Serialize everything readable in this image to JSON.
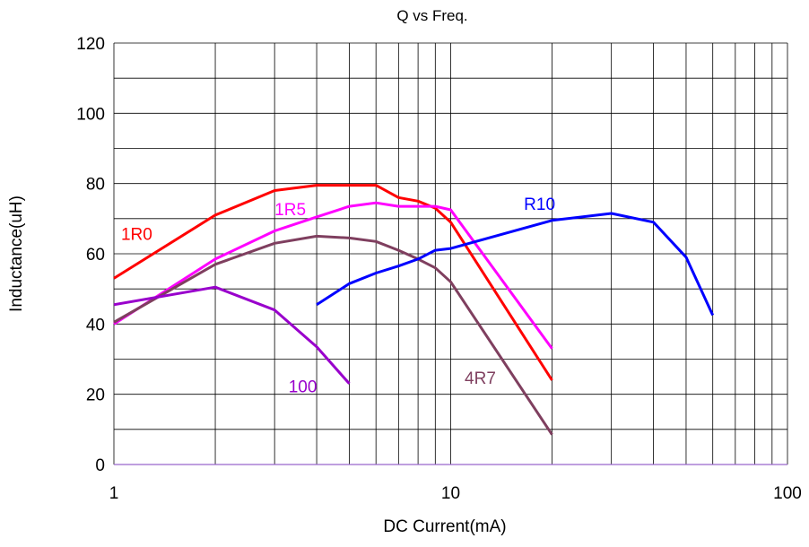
{
  "chart_data": {
    "type": "line",
    "title": "Q vs Freq.",
    "xlabel": "DC Current(mA)",
    "ylabel": "Inductance(uH)",
    "x_scale": "log",
    "xlim": [
      1,
      100
    ],
    "ylim": [
      0,
      120
    ],
    "x_ticks": [
      1,
      10,
      100
    ],
    "y_ticks": [
      0,
      20,
      40,
      60,
      80,
      100,
      120
    ],
    "grid": true,
    "series": [
      {
        "name": "1R0",
        "color": "#ff0000",
        "label_at": [
          1.05,
          64
        ],
        "x": [
          1,
          2,
          3,
          4,
          5,
          6,
          7,
          8,
          9,
          10,
          20
        ],
        "y": [
          53,
          71,
          78,
          79.5,
          79.5,
          79.5,
          76,
          75,
          73,
          69,
          24
        ]
      },
      {
        "name": "1R5",
        "color": "#ff00ff",
        "label_at": [
          3,
          71
        ],
        "x": [
          1,
          2,
          3,
          4,
          5,
          6,
          7,
          8,
          9,
          10,
          20
        ],
        "y": [
          40,
          58.5,
          66.5,
          70.5,
          73.5,
          74.5,
          73.5,
          73.5,
          73.5,
          72.5,
          33
        ]
      },
      {
        "name": "4R7",
        "color": "#7f3f5f",
        "label_at": [
          11,
          23
        ],
        "x": [
          1,
          2,
          3,
          4,
          5,
          6,
          7,
          8,
          9,
          10,
          20
        ],
        "y": [
          40.5,
          57,
          63,
          65,
          64.5,
          63.5,
          61,
          58.5,
          56,
          52,
          8.5
        ]
      },
      {
        "name": "100",
        "color": "#9900cc",
        "label_at": [
          3.3,
          20.5
        ],
        "x": [
          1,
          2,
          3,
          4,
          5
        ],
        "y": [
          45.5,
          50.5,
          44,
          33.5,
          23
        ]
      },
      {
        "name": "R10",
        "color": "#0000ff",
        "label_at": [
          16.5,
          72.5
        ],
        "x": [
          4,
          5,
          6,
          7,
          8,
          9,
          10,
          20,
          30,
          40,
          50,
          60
        ],
        "y": [
          45.5,
          51.5,
          54.5,
          56.5,
          58.5,
          61,
          61.5,
          69.5,
          71.5,
          69,
          59,
          42.5
        ]
      }
    ]
  }
}
